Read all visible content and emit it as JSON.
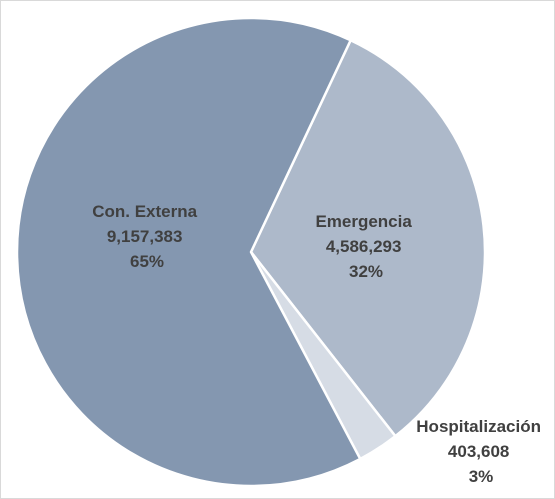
{
  "chart_data": {
    "type": "pie",
    "title": "",
    "legend": "none",
    "slices": [
      {
        "label": "Con. Externa",
        "value": 9157383,
        "value_text": "9,157,383",
        "percent_text": "65%",
        "color": "#8497B0"
      },
      {
        "label": "Emergencia",
        "value": 4586293,
        "value_text": "4,586,293",
        "percent_text": "32%",
        "color": "#ADB9CA"
      },
      {
        "label": "Hospitalización",
        "value": 403608,
        "value_text": "403,608",
        "percent_text": "3%",
        "color": "#D6DCE5"
      }
    ]
  }
}
